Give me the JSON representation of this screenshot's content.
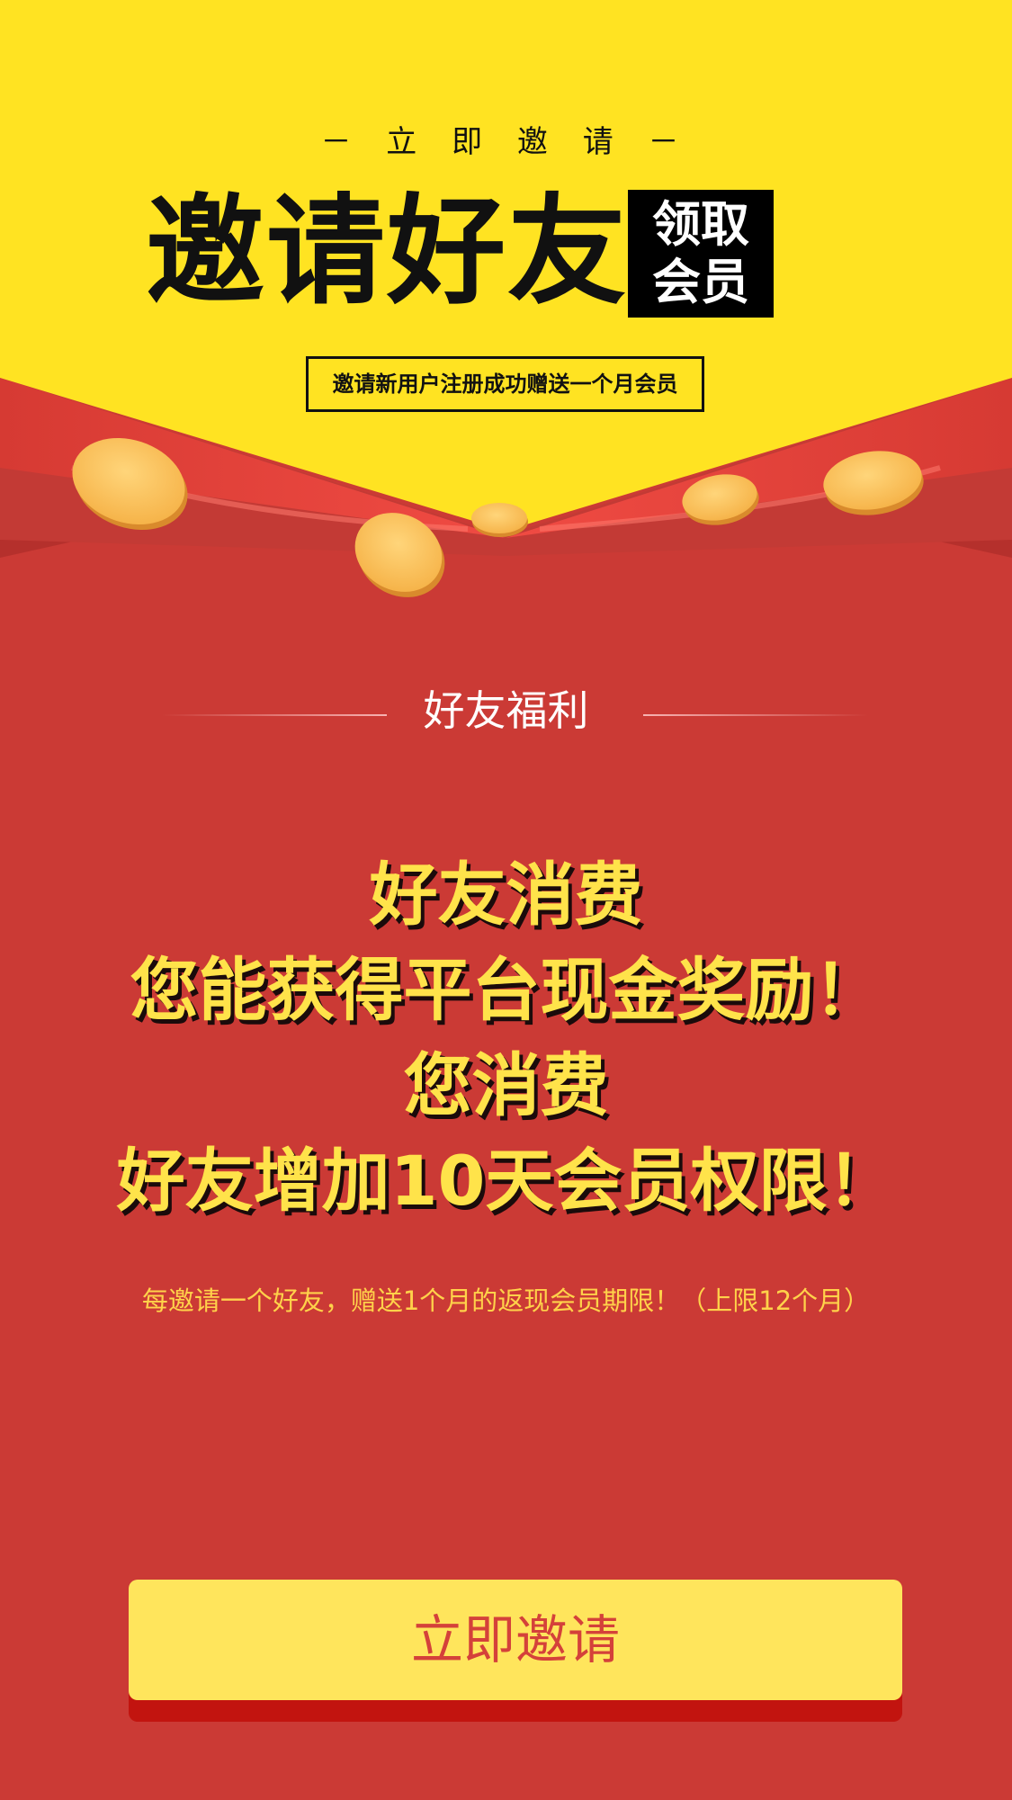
{
  "header": {
    "top_label": "－ 立 即 邀 请 －",
    "title": "邀请好友",
    "badge_line1": "领取",
    "badge_line2": "会员",
    "subtitle": "邀请新用户注册成功赠送一个月会员"
  },
  "benefits": {
    "heading": "好友福利",
    "lines": [
      "好友消费",
      "您能获得平台现金奖励！",
      "您消费",
      "好友增加10天会员权限！"
    ],
    "note": "每邀请一个好友，赠送1个月的返现会员期限！（上限12个月）"
  },
  "cta": {
    "label": "立即邀请"
  },
  "colors": {
    "top_yellow": "#ffe322",
    "envelope_red": "#cb3a35",
    "flap_red": "#e8433c",
    "coin_gold": "#f9c35a",
    "headline_yellow": "#ffe34a",
    "button_yellow": "#ffe55c",
    "button_text": "#d4413a"
  }
}
